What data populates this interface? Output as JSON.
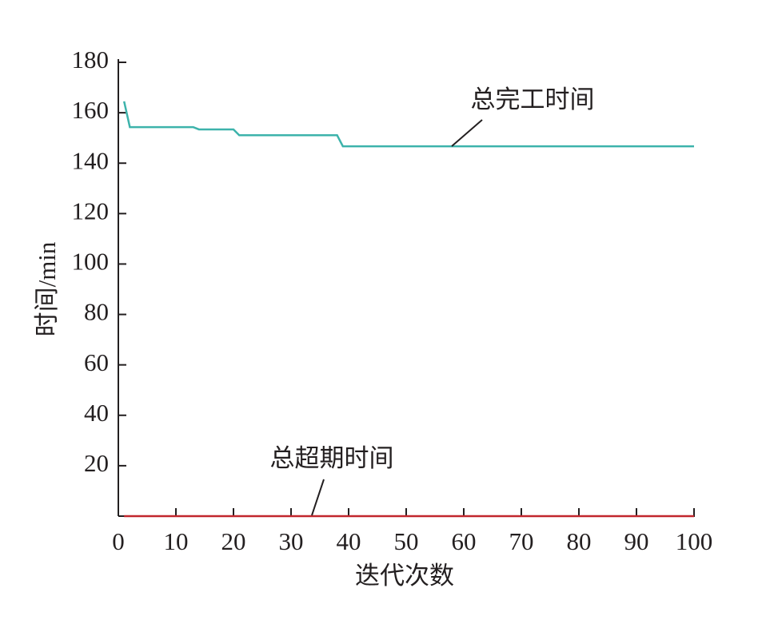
{
  "chart_data": {
    "type": "line",
    "xlabel": "迭代次数",
    "ylabel": "时间/min",
    "series": [
      {
        "name": "总完工时间",
        "color": "#3db3ab",
        "x": [
          1,
          2,
          13,
          14,
          20,
          21,
          38,
          39,
          100
        ],
        "values": [
          164.5,
          154.3,
          154.3,
          153.4,
          153.4,
          151.1,
          151.1,
          146.7,
          146.7
        ]
      },
      {
        "name": "总超期时间",
        "color": "#c1272d",
        "x": [
          1,
          100
        ],
        "values": [
          0,
          0
        ]
      }
    ],
    "xlim": [
      0,
      100
    ],
    "xticks": [
      0,
      10,
      20,
      30,
      40,
      50,
      60,
      70,
      80,
      90,
      100
    ],
    "ylim": [
      0,
      180
    ],
    "yticks": [
      20,
      40,
      60,
      80,
      100,
      120,
      140,
      160,
      180
    ],
    "grid": false
  }
}
